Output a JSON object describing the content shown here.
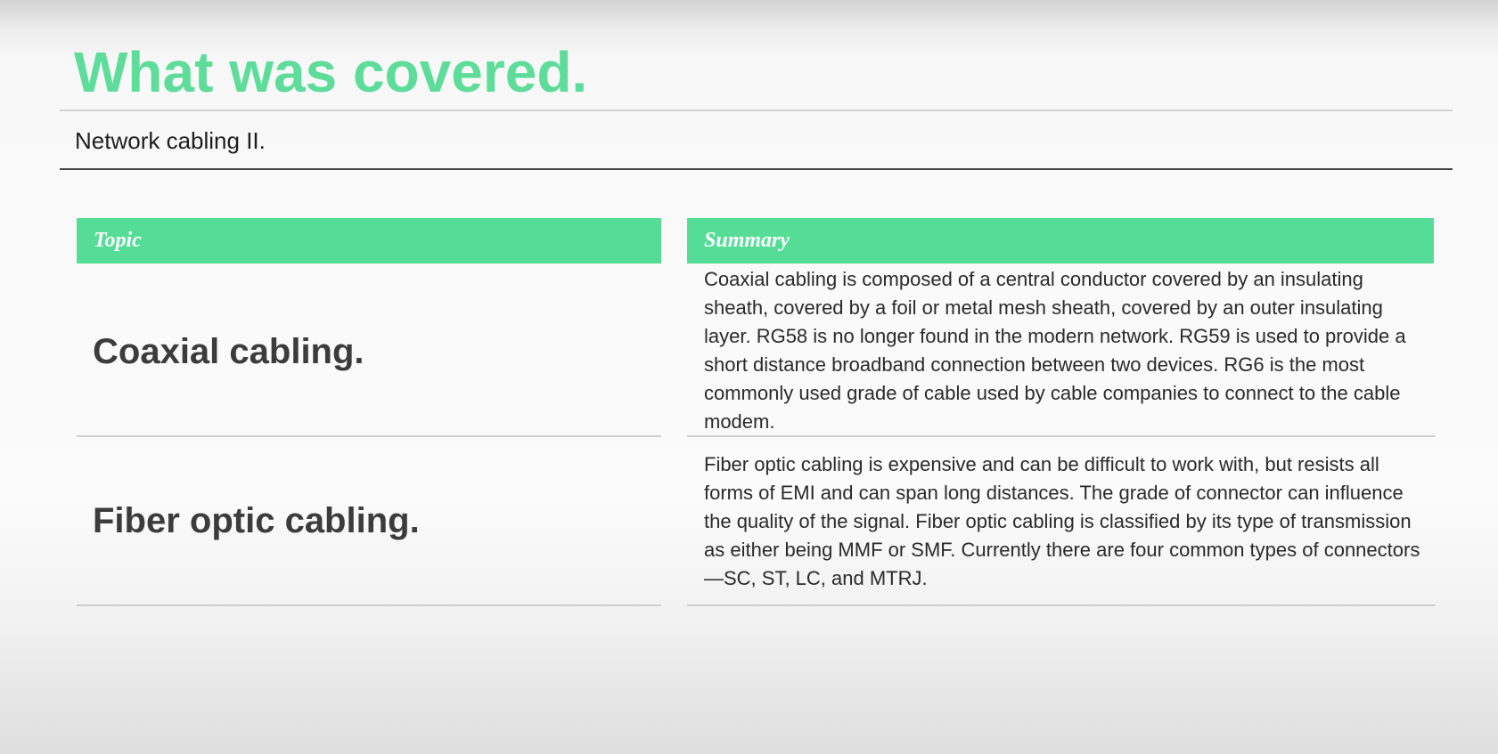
{
  "slide": {
    "title": "What was covered.",
    "subtitle": "Network cabling II."
  },
  "table": {
    "headers": {
      "topic": "Topic",
      "summary": "Summary"
    },
    "rows": [
      {
        "topic": "Coaxial cabling.",
        "summary": "Coaxial cabling is composed of a central conductor covered by an insulating sheath, covered by a foil or metal mesh sheath, covered by an outer insulating layer. RG58 is no longer found in the modern network. RG59 is used to provide a short distance broadband connection between two devices. RG6 is the most commonly used grade of cable used by cable companies to connect to the cable modem."
      },
      {
        "topic": "Fiber optic cabling.",
        "summary": "Fiber optic cabling is expensive and can be difficult to work with, but resists all forms of EMI and can span long distances. The grade of connector can influence the quality of the signal. Fiber optic cabling is classified by its type of transmission as either being MMF or SMF. Currently there are four common types of connectors—SC, ST, LC, and MTRJ."
      }
    ]
  },
  "colors": {
    "accent": "#55dd97",
    "title": "#5edc9a",
    "text": "#333333"
  }
}
